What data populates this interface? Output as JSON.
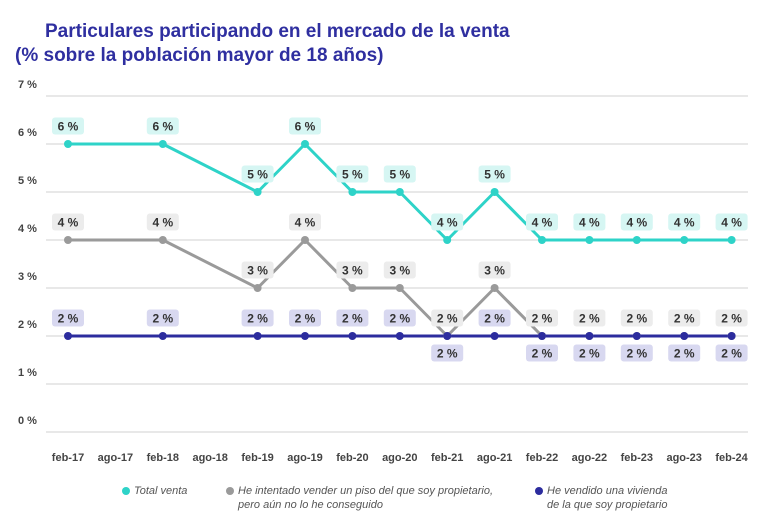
{
  "title": {
    "line1": "Particulares participando en el mercado de la venta",
    "line2": "(% sobre la población mayor de 18 años)"
  },
  "colors": {
    "title": "#2f2fa0",
    "total": "#2ed3c8",
    "tried": "#9a9a9a",
    "sold": "#2c2c9e",
    "grid": "#d0d0d0",
    "axis_text": "#444444"
  },
  "chart_data": {
    "type": "line",
    "title": "Particulares participando en el mercado de la venta (% sobre la población mayor de 18 años)",
    "xlabel": "",
    "ylabel": "",
    "ylim": [
      0,
      7
    ],
    "grid": true,
    "categories": [
      "feb-17",
      "ago-17",
      "feb-18",
      "ago-18",
      "feb-19",
      "ago-19",
      "feb-20",
      "ago-20",
      "feb-21",
      "ago-21",
      "feb-22",
      "ago-22",
      "feb-23",
      "ago-23",
      "feb-24"
    ],
    "y_ticks": [
      {
        "value": 0,
        "label": "0 %"
      },
      {
        "value": 1,
        "label": "1 %"
      },
      {
        "value": 2,
        "label": "2 %"
      },
      {
        "value": 3,
        "label": "3 %"
      },
      {
        "value": 4,
        "label": "4 %"
      },
      {
        "value": 5,
        "label": "5 %"
      },
      {
        "value": 6,
        "label": "6 %"
      },
      {
        "value": 7,
        "label": "7 %"
      }
    ],
    "series": [
      {
        "key": "total",
        "name": "Total venta",
        "values": [
          6,
          null,
          6,
          null,
          5,
          6,
          5,
          5,
          4,
          5,
          4,
          4,
          4,
          4,
          4
        ],
        "labels": [
          "6 %",
          null,
          "6 %",
          null,
          "5 %",
          "6 %",
          "5 %",
          "5 %",
          "4 %",
          "5 %",
          "4 %",
          "4 %",
          "4 %",
          "4 %",
          "4 %"
        ]
      },
      {
        "key": "tried",
        "name": "He intentado vender un piso del que soy propietario, pero aún no lo he conseguido",
        "values": [
          4,
          null,
          4,
          null,
          3,
          4,
          3,
          3,
          2,
          3,
          2,
          2,
          2,
          2,
          2
        ],
        "labels": [
          "4 %",
          null,
          "4 %",
          null,
          "3 %",
          "4 %",
          "3 %",
          "3 %",
          "2 %",
          "3 %",
          "2 %",
          "2 %",
          "2 %",
          "2 %",
          "2 %"
        ]
      },
      {
        "key": "sold",
        "name": "He vendido una vivienda de la que soy propietario",
        "values": [
          2,
          null,
          2,
          null,
          2,
          2,
          2,
          2,
          2,
          2,
          2,
          2,
          2,
          2,
          2
        ],
        "labels": [
          "2 %",
          null,
          "2 %",
          null,
          "2 %",
          "2 %",
          "2 %",
          "2 %",
          "2 %",
          "2 %",
          "2 %",
          "2 %",
          "2 %",
          "2 %",
          "2 %"
        ]
      }
    ]
  },
  "legend": [
    {
      "key": "total",
      "line1": "Total venta",
      "line2": ""
    },
    {
      "key": "tried",
      "line1": "He intentado vender un piso del que soy propietario,",
      "line2": "pero aún no lo he conseguido"
    },
    {
      "key": "sold",
      "line1": "He vendido una vivienda",
      "line2": "de la que soy propietario"
    }
  ]
}
